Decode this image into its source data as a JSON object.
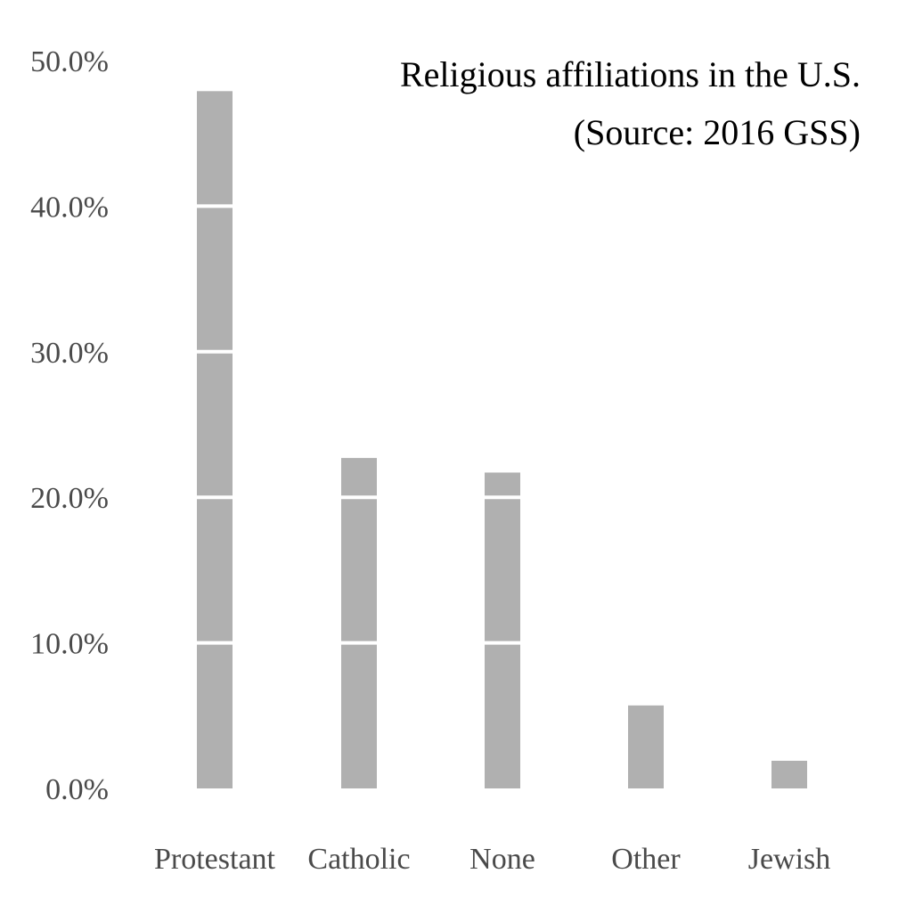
{
  "chart_data": {
    "type": "bar",
    "title": "Religious affiliations in the U.S.",
    "subtitle": "(Source: 2016 GSS)",
    "categories": [
      "Protestant",
      "Catholic",
      "None",
      "Other",
      "Jewish"
    ],
    "values": [
      47.9,
      22.7,
      21.7,
      5.7,
      1.9
    ],
    "ylim": [
      0,
      50
    ],
    "yticks": [
      0,
      10,
      20,
      30,
      40,
      50
    ],
    "ytick_labels": [
      "0.0%",
      "10.0%",
      "20.0%",
      "30.0%",
      "40.0%",
      "50.0%"
    ],
    "grid": "horizontal-white-over-bars",
    "bar_color": "#b0b0b0",
    "grid_color": "#ffffff"
  }
}
